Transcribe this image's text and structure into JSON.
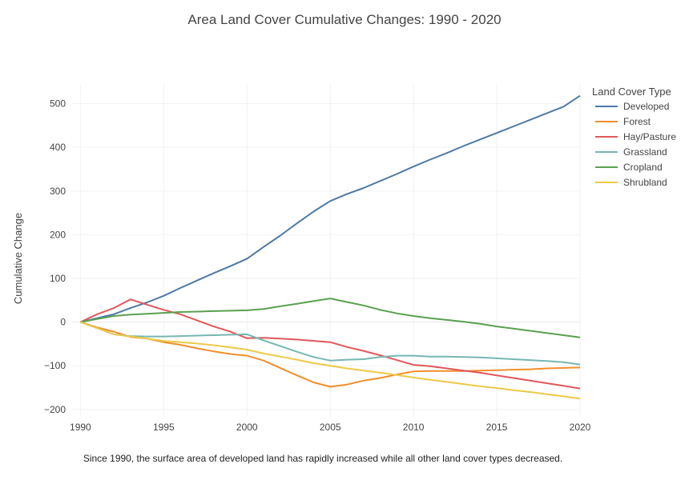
{
  "chart_data": {
    "type": "line",
    "title": "Area Land Cover Cumulative Changes: 1990 - 2020",
    "xlabel": "",
    "ylabel": "Cumulative Change",
    "caption": "Since 1990, the surface area of developed land has rapidly increased while all other land cover types decreased.",
    "xlim": [
      1989.5,
      2020
    ],
    "ylim": [
      -215,
      545
    ],
    "x_ticks": [
      1990,
      1995,
      2000,
      2005,
      2010,
      2015,
      2020
    ],
    "y_ticks": [
      -200,
      -100,
      0,
      100,
      200,
      300,
      400,
      500
    ],
    "y_tick_labels": [
      "−200",
      "−100",
      "0",
      "100",
      "200",
      "300",
      "400",
      "500"
    ],
    "grid": true,
    "legend_title": "Land Cover Type",
    "legend_position": "top-right",
    "x": [
      1990,
      1991,
      1992,
      1993,
      1994,
      1995,
      1996,
      1997,
      1998,
      1999,
      2000,
      2001,
      2002,
      2003,
      2004,
      2005,
      2006,
      2007,
      2008,
      2009,
      2010,
      2011,
      2012,
      2013,
      2014,
      2015,
      2016,
      2017,
      2018,
      2019,
      2020
    ],
    "series": [
      {
        "name": "Developed",
        "color": "#4e79a7",
        "values": [
          0,
          9,
          18,
          32,
          45,
          60,
          78,
          95,
          112,
          128,
          145,
          172,
          198,
          226,
          253,
          277,
          293,
          307,
          323,
          339,
          356,
          372,
          387,
          403,
          418,
          433,
          448,
          463,
          478,
          493,
          518
        ]
      },
      {
        "name": "Forest",
        "color": "#f28e2b",
        "values": [
          0,
          -12,
          -22,
          -34,
          -38,
          -46,
          -52,
          -60,
          -67,
          -73,
          -77,
          -88,
          -105,
          -122,
          -138,
          -148,
          -143,
          -134,
          -128,
          -120,
          -113,
          -112,
          -112,
          -112,
          -111,
          -110,
          -109,
          -108,
          -106,
          -105,
          -104
        ]
      },
      {
        "name": "Hay/Pasture",
        "color": "#e15759",
        "values": [
          0,
          18,
          32,
          52,
          40,
          28,
          18,
          4,
          -10,
          -22,
          -37,
          -36,
          -38,
          -40,
          -43,
          -46,
          -57,
          -66,
          -76,
          -87,
          -98,
          -101,
          -106,
          -111,
          -116,
          -122,
          -128,
          -134,
          -140,
          -146,
          -152
        ]
      },
      {
        "name": "Grassland",
        "color": "#76b7b2",
        "values": [
          0,
          -14,
          -28,
          -32,
          -33,
          -33,
          -32,
          -31,
          -30,
          -29,
          -28,
          -42,
          -55,
          -68,
          -80,
          -88,
          -86,
          -85,
          -80,
          -77,
          -77,
          -79,
          -79,
          -80,
          -81,
          -83,
          -85,
          -87,
          -89,
          -92,
          -97
        ]
      },
      {
        "name": "Cropland",
        "color": "#59a14f",
        "values": [
          0,
          7,
          14,
          17,
          19,
          21,
          23,
          24,
          25,
          26,
          27,
          30,
          36,
          42,
          48,
          54,
          46,
          38,
          28,
          20,
          14,
          9,
          5,
          1,
          -4,
          -10,
          -15,
          -20,
          -25,
          -30,
          -35
        ]
      },
      {
        "name": "Shrubland",
        "color": "#edc948",
        "values": [
          0,
          -14,
          -28,
          -33,
          -38,
          -43,
          -46,
          -49,
          -53,
          -58,
          -63,
          -72,
          -79,
          -86,
          -94,
          -100,
          -106,
          -111,
          -116,
          -121,
          -127,
          -132,
          -137,
          -142,
          -147,
          -151,
          -156,
          -160,
          -165,
          -170,
          -175
        ]
      }
    ]
  }
}
